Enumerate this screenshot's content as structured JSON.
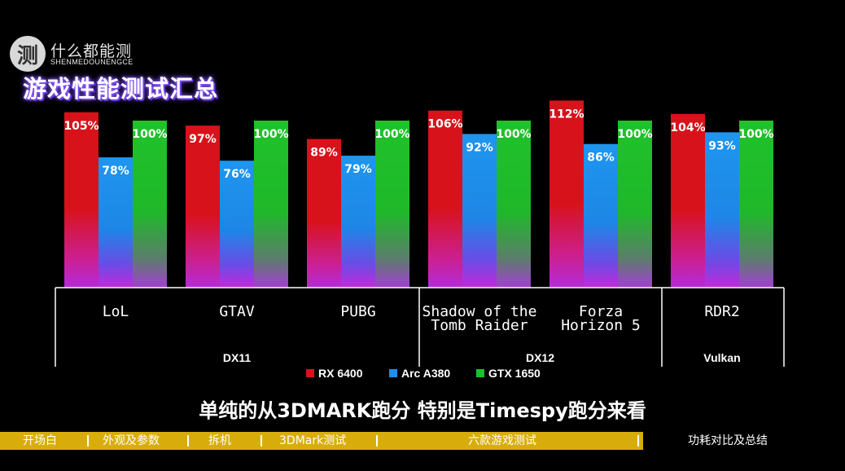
{
  "brand": {
    "logo_char": "测",
    "name_cn": "什么都能测",
    "name_en": "SHENMEDOUNENGCE"
  },
  "page_title": "游戏性能测试汇总",
  "subtitle": "单纯的从3DMARK跑分 特别是Timespy跑分来看",
  "colors": {
    "rx6400": "#d8121b",
    "arc_a380": "#1f8fe8",
    "gtx1650": "#1fbf27",
    "nav_bar": "#d8ad0b"
  },
  "chart_data": {
    "type": "bar",
    "title": "",
    "xlabel": "",
    "ylabel": "",
    "ylim": [
      0,
      120
    ],
    "grid": false,
    "legend_position": "bottom",
    "categories": [
      {
        "lines": [
          "LoL"
        ]
      },
      {
        "lines": [
          "GTAV"
        ]
      },
      {
        "lines": [
          "PUBG"
        ]
      },
      {
        "lines": [
          "Shadow of the",
          "Tomb Raider"
        ]
      },
      {
        "lines": [
          "Forza",
          "Horizon 5"
        ]
      },
      {
        "lines": [
          "RDR2"
        ]
      }
    ],
    "groups": [
      {
        "label": "DX11",
        "span": [
          0,
          2
        ]
      },
      {
        "label": "DX12",
        "span": [
          3,
          4
        ]
      },
      {
        "label": "Vulkan",
        "span": [
          5,
          5
        ]
      }
    ],
    "series": [
      {
        "name": "RX 6400",
        "color": "#d8121b",
        "values": [
          105,
          97,
          89,
          106,
          112,
          104
        ],
        "labels": [
          "105%",
          "97%",
          "89%",
          "106%",
          "112%",
          "104%"
        ]
      },
      {
        "name": "Arc A380",
        "color": "#1f8fe8",
        "values": [
          78,
          76,
          79,
          92,
          86,
          93
        ],
        "labels": [
          "78%",
          "76%",
          "79%",
          "92%",
          "86%",
          "93%"
        ]
      },
      {
        "name": "GTX 1650",
        "color": "#1fbf27",
        "values": [
          100,
          100,
          100,
          100,
          100,
          100
        ],
        "labels": [
          "100%",
          "100%",
          "100%",
          "100%",
          "100%",
          "100%"
        ]
      }
    ]
  },
  "nav": {
    "items": [
      "开场白",
      "外观及参数",
      "拆机",
      "3DMark测试",
      "六款游戏测试",
      "功耗对比及总结"
    ],
    "active_index": 4
  }
}
